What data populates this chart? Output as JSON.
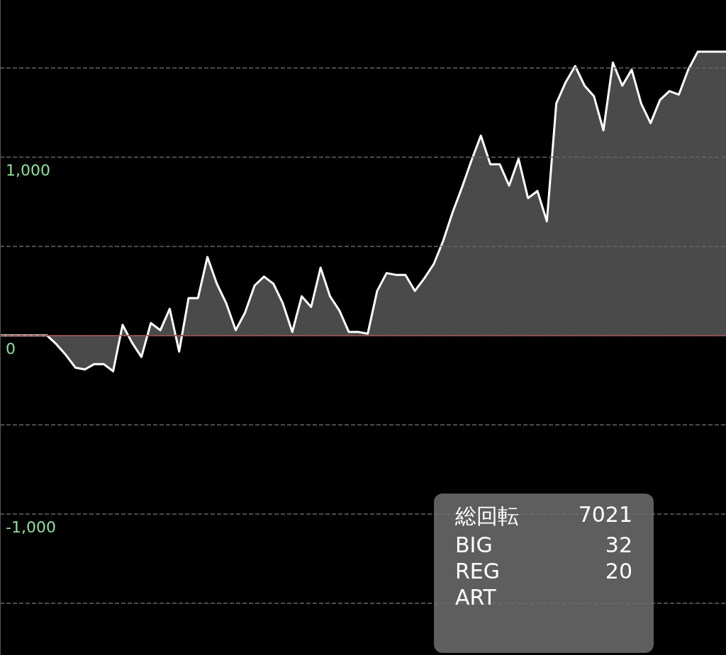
{
  "chart_data": {
    "type": "area",
    "categories": [
      null,
      null,
      null,
      null,
      null,
      null,
      null,
      null,
      null,
      null,
      null,
      null,
      null,
      null,
      null,
      null,
      null,
      null,
      null,
      null,
      null,
      null,
      null,
      null,
      null,
      null,
      null,
      null,
      null,
      null,
      null,
      null,
      null,
      null,
      null,
      null,
      null,
      null,
      null,
      null,
      null,
      null,
      null,
      null,
      null,
      null,
      null,
      null,
      null,
      null,
      null,
      null,
      null,
      null,
      null,
      null,
      null,
      null,
      null,
      null,
      null,
      null,
      null,
      null,
      null,
      null,
      null,
      null,
      null,
      null,
      null,
      null,
      null,
      null,
      null,
      null,
      null,
      null
    ],
    "series": [
      {
        "color": "#ffffff",
        "values": [
          0,
          0,
          0,
          0,
          0,
          0,
          -50,
          -110,
          -180,
          -190,
          -160,
          -160,
          -200,
          60,
          -40,
          -120,
          70,
          30,
          150,
          -90,
          210,
          210,
          440,
          290,
          180,
          30,
          130,
          280,
          330,
          290,
          180,
          20,
          220,
          160,
          380,
          220,
          140,
          20,
          20,
          10,
          250,
          350,
          340,
          340,
          250,
          320,
          400,
          530,
          690,
          830,
          980,
          1120,
          960,
          960,
          840,
          990,
          770,
          810,
          640,
          1300,
          1420,
          1510,
          1400,
          1340,
          1150,
          1530,
          1400,
          1490,
          1300,
          1190,
          1320,
          1370,
          1350,
          1490,
          1590,
          1590,
          1590,
          1590
        ]
      }
    ],
    "ylim": [
      -1790,
      1880
    ],
    "yticks": [
      {
        "value": -1500,
        "label": null
      },
      {
        "value": -1000,
        "label": "-1,000"
      },
      {
        "value": -500,
        "label": null
      },
      0,
      {
        "value": 500,
        "label": null
      },
      {
        "value": 1000,
        "label": "1,000"
      },
      {
        "value": 1500,
        "label": null
      }
    ],
    "grid": "y",
    "marker": "none",
    "tick_labels": "y",
    "ref_lines": [
      {
        "axis": "y",
        "value": 0,
        "label": null,
        "color": "#e04040"
      }
    ],
    "annotations": [
      "総回転",
      "7021",
      "BIG",
      "32",
      "REG",
      "20",
      "ART"
    ]
  }
}
